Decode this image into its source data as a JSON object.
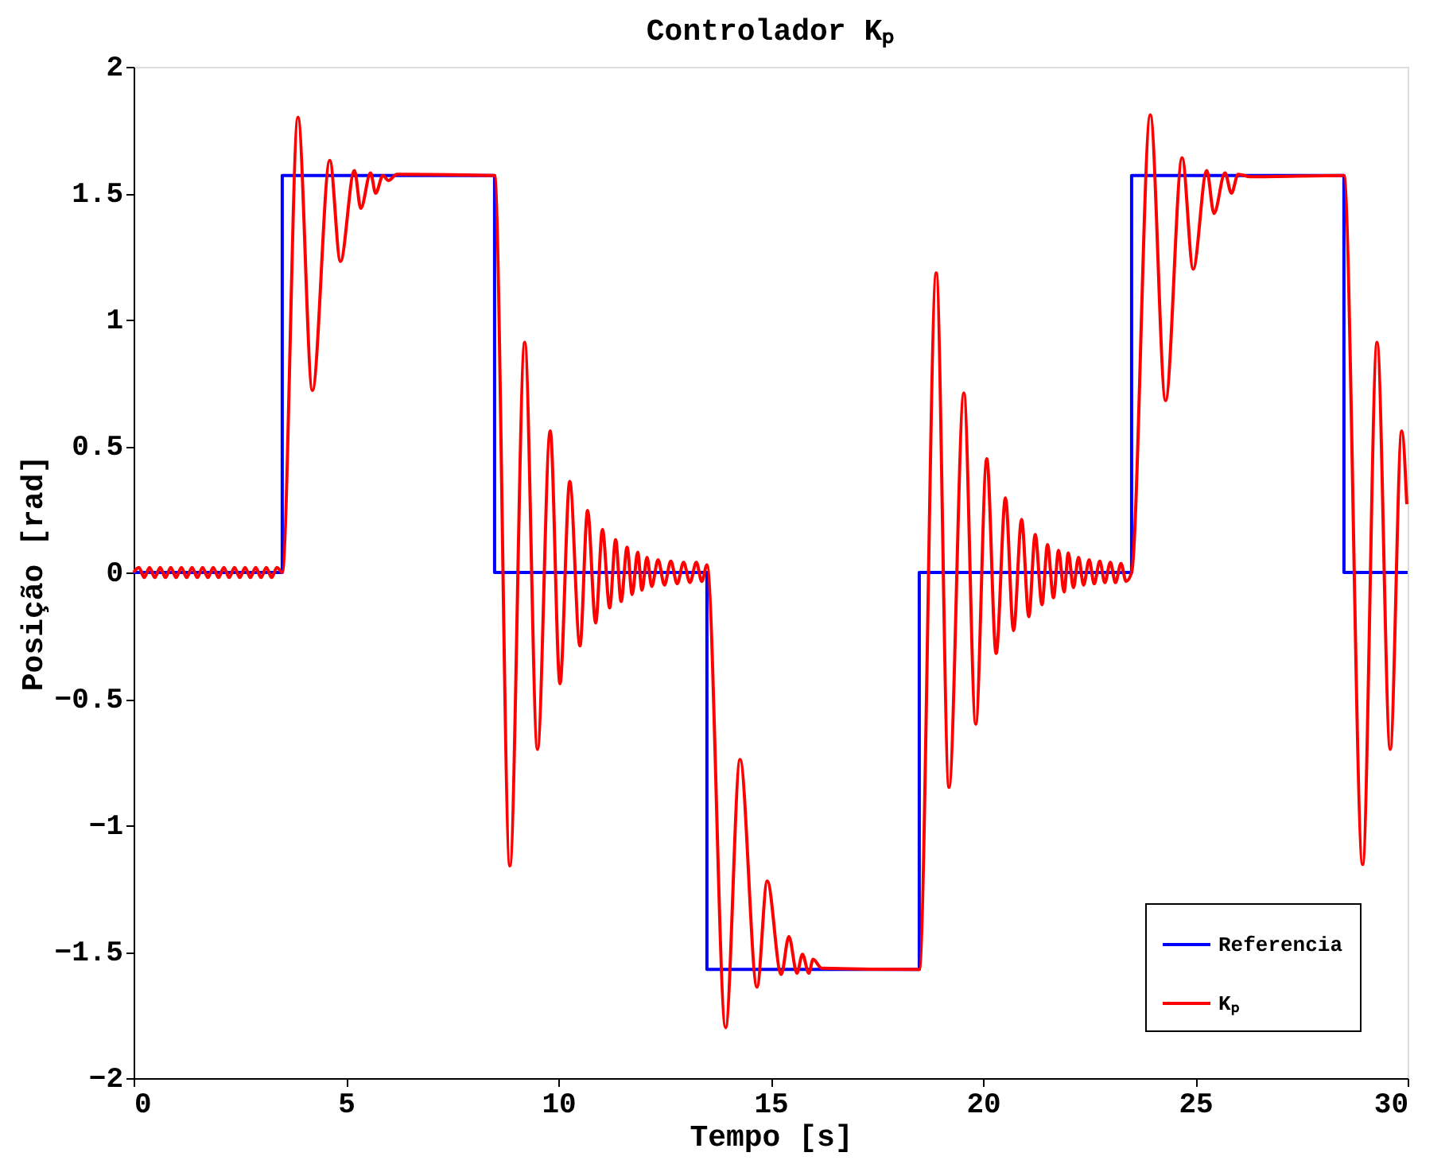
{
  "chart_data": {
    "type": "line",
    "title": "Controlador Kₚ",
    "xlabel": "Tempo [s]",
    "ylabel": "Posição [rad]",
    "xlim": [
      0,
      30
    ],
    "xticks": [
      0,
      5,
      10,
      15,
      20,
      25,
      30
    ],
    "ylim": [
      -2,
      2
    ],
    "yticks": [
      -2,
      -1.5,
      -1,
      -0.5,
      0,
      0.5,
      1,
      1.5,
      2
    ],
    "grid": false,
    "legend": "bottom right",
    "series": [
      {
        "name": "Referencia",
        "color": "#0000ff",
        "type": "step",
        "x": [
          0,
          3.5,
          8.5,
          13.5,
          18.5,
          23.5,
          28.5,
          30
        ],
        "values": [
          0,
          1.57,
          0,
          -1.57,
          0,
          1.57,
          0,
          0
        ]
      },
      {
        "name": "Kₚ",
        "color": "#ff0000",
        "type": "line",
        "x": [
          0,
          0.125,
          0.25,
          0.375,
          0.5,
          0.625,
          0.75,
          0.875,
          1,
          1.125,
          1.25,
          1.375,
          1.5,
          1.625,
          1.75,
          1.875,
          2,
          2.125,
          2.25,
          2.375,
          2.5,
          2.625,
          2.75,
          2.875,
          3,
          3.125,
          3.25,
          3.375,
          3.5,
          3.87,
          4.21,
          4.62,
          4.87,
          5.2,
          5.35,
          5.58,
          5.7,
          5.87,
          6.0,
          6.2,
          8.5,
          8.86,
          9.21,
          9.51,
          9.81,
          10.04,
          10.27,
          10.51,
          10.69,
          10.88,
          11.04,
          11.21,
          11.35,
          11.48,
          11.62,
          11.74,
          11.87,
          11.97,
          12.09,
          12.2,
          12.35,
          12.5,
          12.65,
          12.8,
          12.95,
          13.1,
          13.25,
          13.38,
          13.5,
          13.94,
          14.28,
          14.68,
          14.92,
          15.25,
          15.43,
          15.62,
          15.75,
          15.9,
          16.0,
          16.2,
          18.5,
          18.9,
          19.2,
          19.55,
          19.83,
          20.09,
          20.31,
          20.53,
          20.72,
          20.91,
          21.08,
          21.23,
          21.39,
          21.52,
          21.66,
          21.78,
          21.91,
          22.01,
          22.13,
          22.25,
          22.37,
          22.5,
          22.62,
          22.75,
          22.87,
          23.0,
          23.12,
          23.25,
          23.37,
          23.5,
          23.94,
          24.3,
          24.69,
          24.95,
          25.27,
          25.44,
          25.7,
          25.85,
          26.01,
          26.3,
          28.5,
          28.94,
          29.28,
          29.59,
          29.86,
          29.98
        ],
        "values": [
          0,
          0.02,
          -0.02,
          0.02,
          -0.02,
          0.02,
          -0.02,
          0.02,
          -0.02,
          0.02,
          -0.02,
          0.02,
          -0.02,
          0.02,
          -0.02,
          0.02,
          -0.02,
          0.02,
          -0.02,
          0.02,
          -0.02,
          0.02,
          -0.02,
          0.02,
          -0.02,
          0.02,
          -0.02,
          0.02,
          0,
          1.8,
          0.72,
          1.63,
          1.23,
          1.59,
          1.44,
          1.58,
          1.5,
          1.57,
          1.55,
          1.575,
          1.57,
          -1.16,
          0.91,
          -0.7,
          0.56,
          -0.44,
          0.36,
          -0.29,
          0.245,
          -0.2,
          0.17,
          -0.14,
          0.13,
          -0.115,
          0.1,
          -0.087,
          0.08,
          -0.07,
          0.06,
          -0.055,
          0.05,
          -0.05,
          0.045,
          -0.045,
          0.04,
          -0.04,
          0.04,
          -0.035,
          0.03,
          -1.8,
          -0.74,
          -1.64,
          -1.22,
          -1.59,
          -1.44,
          -1.585,
          -1.51,
          -1.585,
          -1.53,
          -1.565,
          -1.57,
          1.185,
          -0.85,
          0.71,
          -0.6,
          0.45,
          -0.32,
          0.295,
          -0.23,
          0.21,
          -0.175,
          0.15,
          -0.127,
          0.11,
          -0.1,
          0.087,
          -0.077,
          0.077,
          -0.06,
          0.06,
          -0.05,
          0.05,
          -0.045,
          0.045,
          -0.04,
          0.04,
          -0.04,
          0.035,
          -0.035,
          0,
          1.81,
          0.68,
          1.64,
          1.2,
          1.59,
          1.42,
          1.58,
          1.5,
          1.575,
          1.565,
          1.57,
          -1.155,
          0.91,
          -0.7,
          0.56,
          0.27
        ]
      }
    ]
  }
}
